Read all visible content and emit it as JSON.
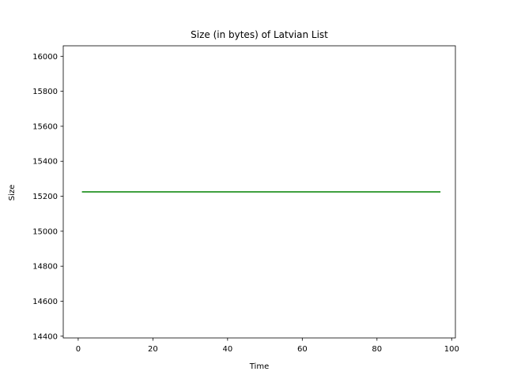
{
  "chart_data": {
    "type": "line",
    "title": "Size (in bytes) of Latvian List",
    "xlabel": "Time",
    "ylabel": "Size",
    "xlim": [
      -4,
      101
    ],
    "ylim": [
      14390,
      16060
    ],
    "xticks": [
      0,
      20,
      40,
      60,
      80,
      100
    ],
    "yticks": [
      14400,
      14600,
      14800,
      15000,
      15200,
      15400,
      15600,
      15800,
      16000
    ],
    "grid": false,
    "series": [
      {
        "color": "#008000",
        "x": [
          1,
          97
        ],
        "y": [
          15225,
          15225
        ]
      }
    ]
  }
}
